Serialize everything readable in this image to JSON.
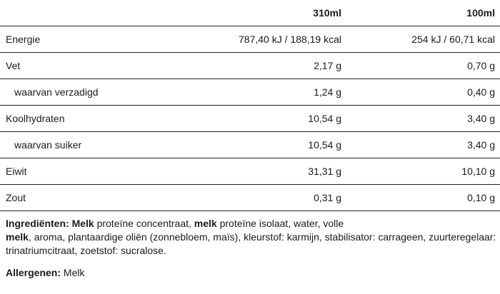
{
  "headers": [
    "",
    "310ml",
    "100ml"
  ],
  "rows": [
    {
      "label": "Energie",
      "v310": "787,40 kJ / 188,19 kcal",
      "v100": "254 kJ / 60,71 kcal",
      "sub": false
    },
    {
      "label": "Vet",
      "v310": "2,17 g",
      "v100": "0,70 g",
      "sub": false
    },
    {
      "label": "waarvan verzadigd",
      "v310": "1,24 g",
      "v100": "0,40 g",
      "sub": true
    },
    {
      "label": "Koolhydraten",
      "v310": "10,54 g",
      "v100": "3,40 g",
      "sub": false
    },
    {
      "label": "waarvan suiker",
      "v310": "10,54 g",
      "v100": "3,40 g",
      "sub": true
    },
    {
      "label": "Eiwit",
      "v310": "31,31 g",
      "v100": "10,10 g",
      "sub": false
    },
    {
      "label": "Zout",
      "v310": "0,31 g",
      "v100": "0,10 g",
      "sub": false
    }
  ],
  "ingredients": {
    "label": "Ingrediënten:",
    "parts": [
      {
        "text": " ",
        "bold": false
      },
      {
        "text": "Melk",
        "bold": true
      },
      {
        "text": " proteïne concentraat, ",
        "bold": false
      },
      {
        "text": "melk",
        "bold": true
      },
      {
        "text": " proteïne isolaat, water, volle",
        "bold": false
      },
      {
        "text": "melk",
        "bold": true,
        "break_before": true
      },
      {
        "text": ", aroma, plantaardige oliën (zonnebloem, maïs), kleurstof: karmijn, stabilisator: carrageen, zuurteregelaar: trinatriumcitraat, zoetstof: sucralose.",
        "bold": false
      }
    ]
  },
  "allergens": {
    "label": "Allergenen:",
    "value": " Melk"
  }
}
